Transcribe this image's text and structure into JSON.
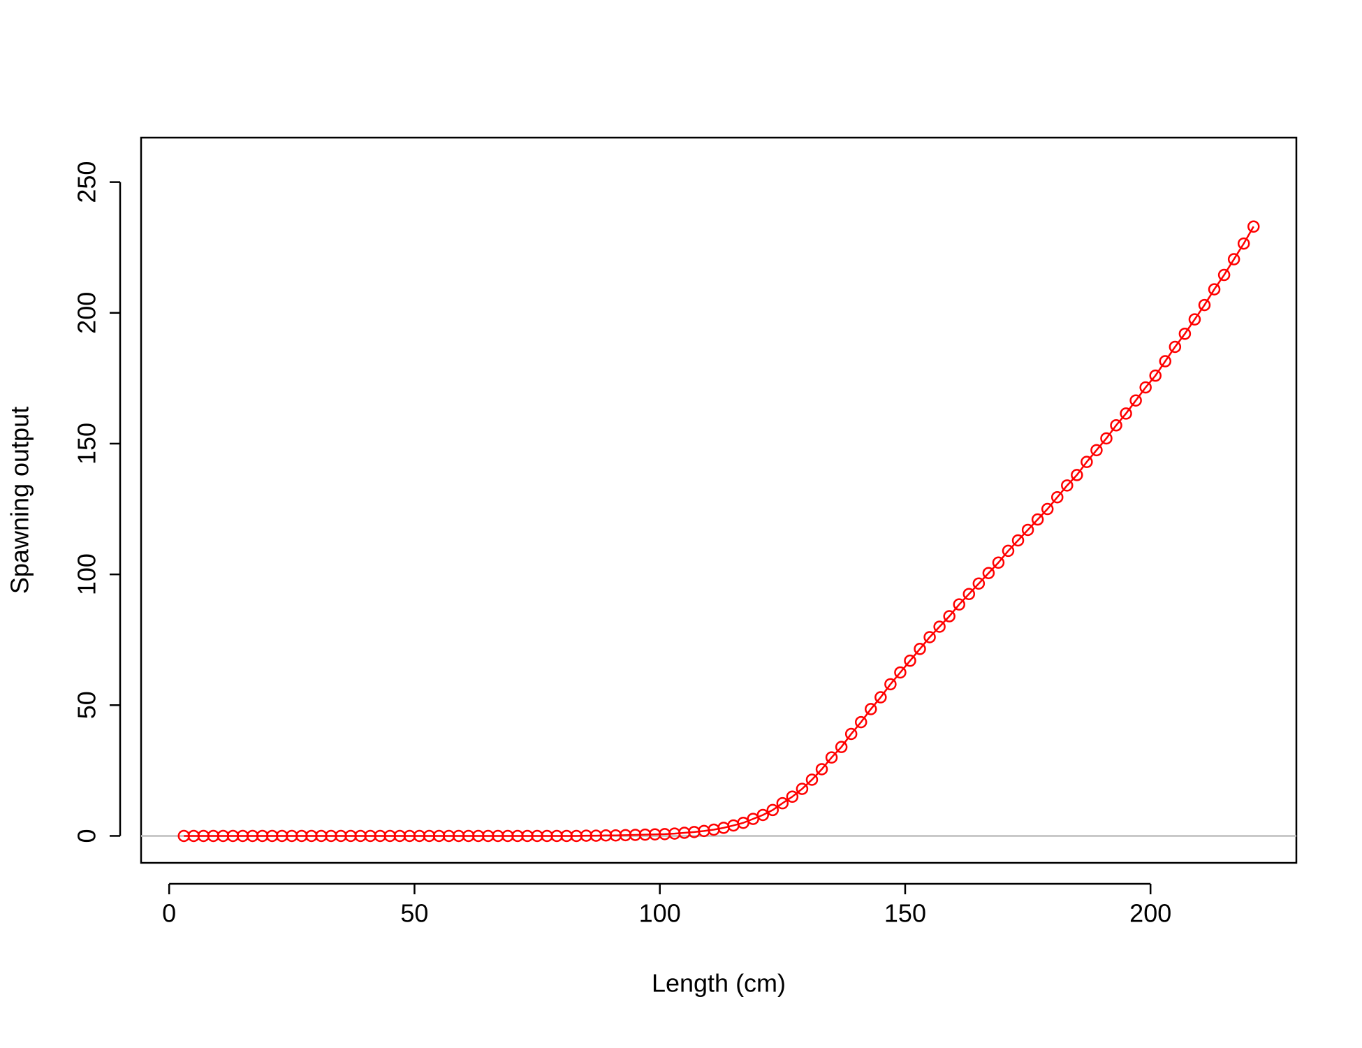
{
  "chart_data": {
    "type": "line",
    "x_label": "Length (cm)",
    "y_label": "Spawning output",
    "x": [
      3,
      5,
      7,
      9,
      11,
      13,
      15,
      17,
      19,
      21,
      23,
      25,
      27,
      29,
      31,
      33,
      35,
      37,
      39,
      41,
      43,
      45,
      47,
      49,
      51,
      53,
      55,
      57,
      59,
      61,
      63,
      65,
      67,
      69,
      71,
      73,
      75,
      77,
      79,
      81,
      83,
      85,
      87,
      89,
      91,
      93,
      95,
      97,
      99,
      101,
      103,
      105,
      107,
      109,
      111,
      113,
      115,
      117,
      119,
      121,
      123,
      125,
      127,
      129,
      131,
      133,
      135,
      137,
      139,
      141,
      143,
      145,
      147,
      149,
      151,
      153,
      155,
      157,
      159,
      161,
      163,
      165,
      167,
      169,
      171,
      173,
      175,
      177,
      179,
      181,
      183,
      185,
      187,
      189,
      191,
      193,
      195,
      197,
      199,
      201,
      203,
      205,
      207,
      209,
      211,
      213,
      215,
      217,
      219,
      221
    ],
    "series": [
      {
        "color": "#ff0000",
        "values": [
          0,
          0,
          0,
          0,
          0,
          0,
          0,
          0,
          0,
          0,
          0,
          0,
          0,
          0,
          0,
          0,
          0,
          0,
          0,
          0,
          0,
          0,
          0,
          0,
          0,
          0,
          0,
          0,
          0,
          0,
          0,
          0,
          0,
          0,
          0,
          0,
          0,
          0,
          0,
          0,
          0,
          0.1,
          0.1,
          0.2,
          0.2,
          0.3,
          0.4,
          0.5,
          0.6,
          0.7,
          0.9,
          1.2,
          1.5,
          1.9,
          2.4,
          3.1,
          4,
          5,
          6.5,
          8,
          9.9,
          12.5,
          15,
          18,
          21.5,
          25.5,
          30,
          34,
          39,
          43.5,
          48.5,
          53,
          58,
          62.5,
          67,
          71.5,
          76,
          80,
          84,
          88.5,
          92.5,
          96.5,
          100.5,
          104.5,
          109,
          113,
          117,
          121,
          125,
          129.5,
          134,
          138,
          143,
          147.5,
          152,
          157,
          161.5,
          166.5,
          171.5,
          176,
          181.5,
          187,
          192,
          197.5,
          203,
          209,
          214.5,
          220.5,
          226.5,
          233
        ]
      }
    ],
    "hline": 0,
    "hline_color": "#bebebe",
    "xlim": [
      -5.72,
      229.72
    ],
    "xticks": [
      0,
      50,
      100,
      150,
      200
    ],
    "ylim": [
      -10.3,
      267
    ],
    "yticks": [
      0,
      50,
      100,
      150,
      200,
      250
    ]
  }
}
